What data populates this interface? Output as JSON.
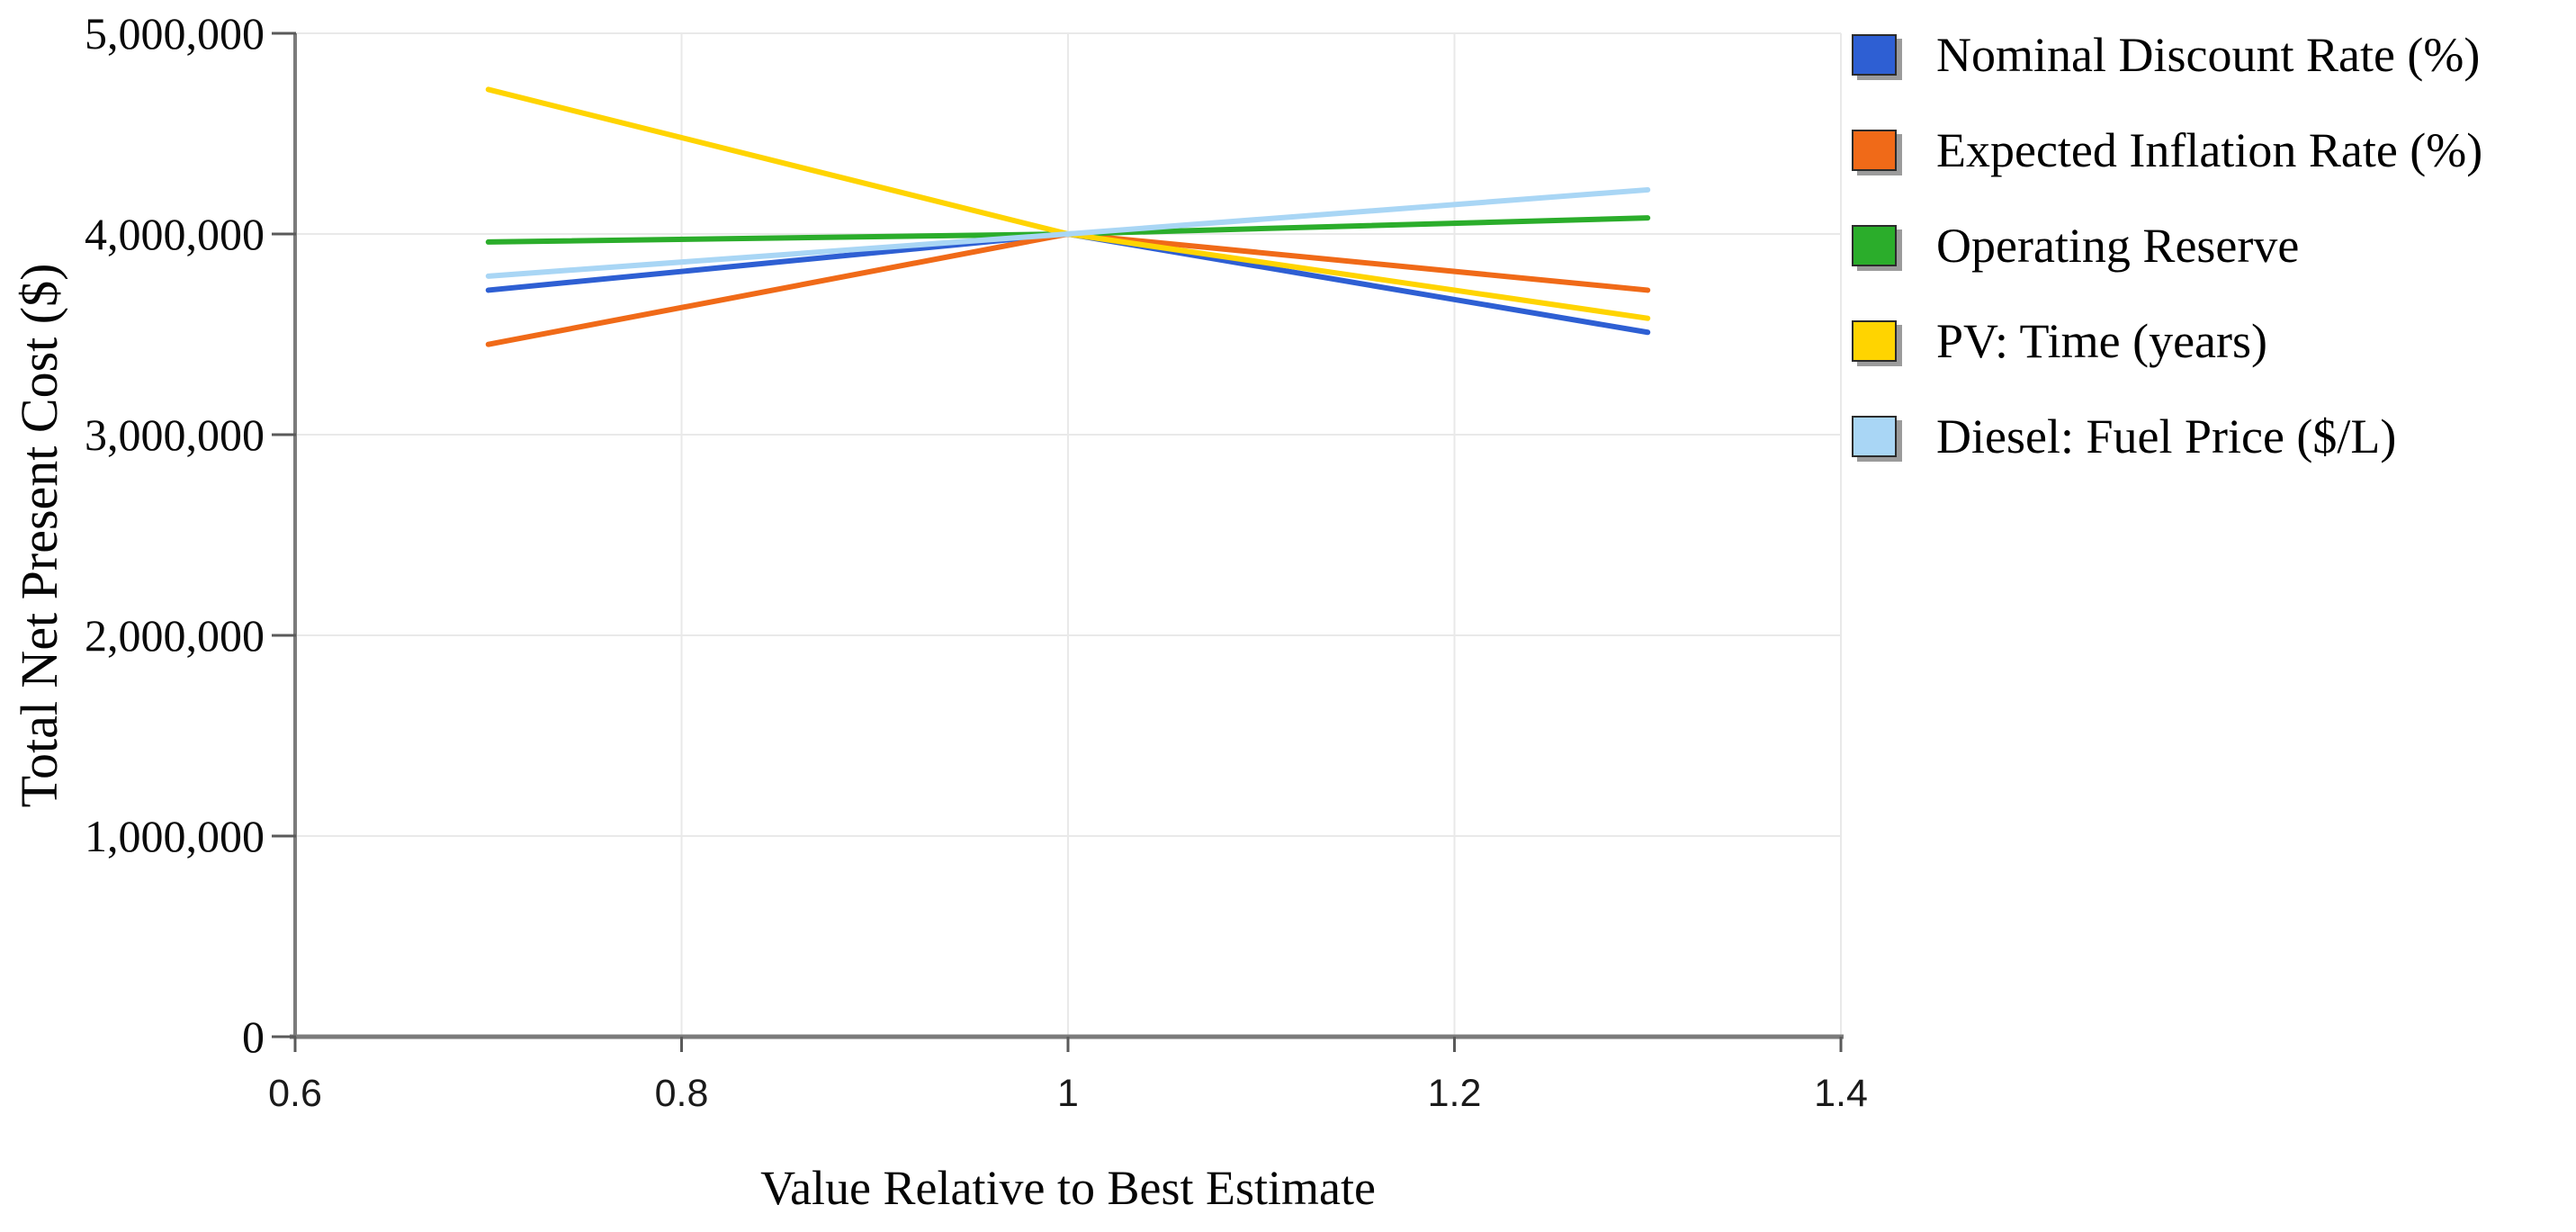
{
  "chart_data": {
    "type": "line",
    "title": "",
    "xlabel": "Value Relative to Best Estimate",
    "ylabel": "Total Net Present Cost ($)",
    "x": [
      0.7,
      1.0,
      1.3
    ],
    "series": [
      {
        "name": "Nominal Discount Rate (%)",
        "color": "#2E5FD3",
        "values": [
          3720000,
          4000000,
          3510000
        ]
      },
      {
        "name": "Expected Inflation Rate (%)",
        "color": "#F06A18",
        "values": [
          3450000,
          4000000,
          3720000
        ]
      },
      {
        "name": "Operating Reserve",
        "color": "#2BAD2B",
        "values": [
          3960000,
          4000000,
          4080000
        ]
      },
      {
        "name": "PV: Time (years)",
        "color": "#FFD400",
        "values": [
          4720000,
          4000000,
          3580000
        ]
      },
      {
        "name": "Diesel: Fuel Price ($/L)",
        "color": "#A9D6F5",
        "values": [
          3790000,
          4000000,
          4220000
        ]
      }
    ],
    "xlim": [
      0.6,
      1.4
    ],
    "ylim": [
      0,
      5000000
    ],
    "x_ticks": {
      "values": [
        0.6,
        0.8,
        1,
        1.2,
        1.4
      ],
      "labels": [
        "0.6",
        "0.8",
        "1",
        "1.2",
        "1.4"
      ]
    },
    "y_ticks": {
      "values": [
        0,
        1000000,
        2000000,
        3000000,
        4000000,
        5000000
      ],
      "labels": [
        "0",
        "1,000,000",
        "2,000,000",
        "3,000,000",
        "4,000,000",
        "5,000,000"
      ]
    },
    "grid": true,
    "legend_position": "right",
    "colors": {
      "axis": "#7b7b7b",
      "tick": "#5a5a5a",
      "gridline": "#e9e9e9",
      "background": "#ffffff"
    }
  }
}
